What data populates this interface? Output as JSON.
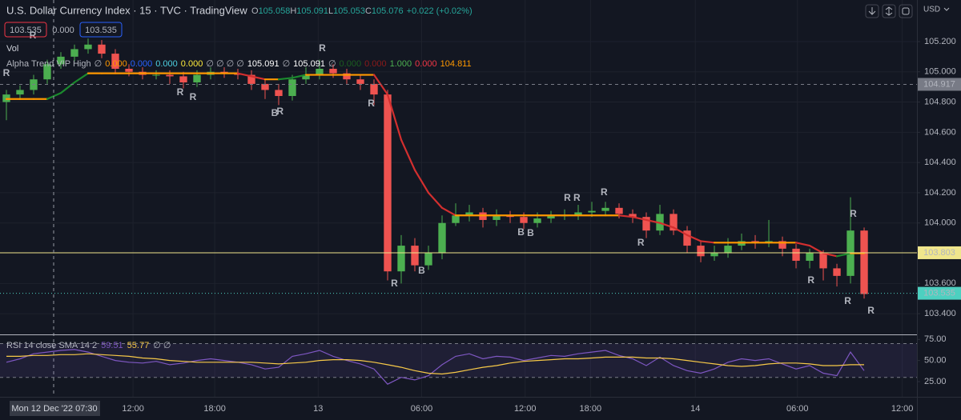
{
  "header": {
    "title": "U.S. Dollar Currency Index · 15 · TVC · TradingView",
    "ohlc": [
      "O",
      "105.058",
      "H",
      "105.091",
      "L",
      "105.053",
      "C",
      "105.076"
    ],
    "change": "+0.022 (+0.02%)",
    "tags": [
      {
        "text": "103.535",
        "color": "#f23645"
      },
      {
        "text": "0.000",
        "color": "#d1d4dc"
      },
      {
        "text": "103.535",
        "color": "#2962ff"
      }
    ],
    "vol": "Vol",
    "indicator": "Alpha Trend VIP High",
    "indicator_values": [
      {
        "text": "∅",
        "color": "#b2b5be"
      },
      {
        "text": "0.000",
        "color": "#ff9800"
      },
      {
        "text": "0.000",
        "color": "#2962ff"
      },
      {
        "text": "0.000",
        "color": "#4dd0e1"
      },
      {
        "text": "0.000",
        "color": "#ffeb3b"
      },
      {
        "text": "∅ ∅ ∅ ∅",
        "color": "#b2b5be"
      },
      {
        "text": "105.091",
        "color": "#ffffff"
      },
      {
        "text": "∅",
        "color": "#b2b5be"
      },
      {
        "text": "105.091",
        "color": "#ffffff"
      },
      {
        "text": "∅",
        "color": "#b2b5be"
      },
      {
        "text": "0.000",
        "color": "#1b5e20"
      },
      {
        "text": "0.000",
        "color": "#8b1a1a"
      },
      {
        "text": "1.000",
        "color": "#4caf50"
      },
      {
        "text": "0.000",
        "color": "#f23645"
      },
      {
        "text": "104.811",
        "color": "#ff9800"
      }
    ],
    "currency": "USD",
    "crosshair_label": "Mon 12 Dec '22  07:30"
  },
  "chart_data": [
    {
      "type": "candlestick",
      "up_color": "#4caf50",
      "down_color": "#ef5350",
      "open": [
        104.8,
        104.85,
        104.88,
        104.95,
        105.05,
        105.1,
        105.15,
        105.18,
        105.12,
        105.02,
        105.0,
        104.98,
        104.98,
        104.97,
        104.93,
        104.98,
        105.0,
        104.99,
        104.98,
        104.92,
        104.88,
        104.84,
        104.95,
        104.98,
        105.02,
        104.99,
        104.95,
        104.92,
        104.85,
        103.68,
        103.85,
        103.72,
        103.8,
        104.0,
        104.05,
        104.07,
        104.02,
        104.05,
        104.04,
        104.0,
        104.03,
        104.05,
        104.05,
        104.07,
        104.08,
        104.1,
        104.06,
        104.04,
        103.95,
        104.06,
        103.95,
        103.85,
        103.78,
        103.8,
        103.85,
        103.88,
        103.87,
        103.88,
        103.83,
        103.75,
        103.8,
        103.7,
        103.65,
        103.95
      ],
      "high": [
        104.88,
        104.91,
        104.98,
        105.08,
        105.13,
        105.18,
        105.22,
        105.21,
        105.15,
        105.05,
        105.03,
        105.01,
        105.01,
        105.0,
        105.01,
        105.03,
        105.03,
        105.02,
        105.01,
        104.95,
        104.92,
        104.98,
        105.03,
        105.08,
        105.05,
        105.02,
        104.98,
        104.95,
        104.88,
        103.92,
        103.9,
        103.85,
        104.05,
        104.13,
        104.12,
        104.1,
        104.09,
        104.08,
        104.07,
        104.07,
        104.08,
        104.09,
        104.12,
        104.14,
        104.14,
        104.13,
        104.09,
        104.07,
        104.12,
        104.09,
        103.98,
        103.88,
        103.85,
        103.9,
        103.93,
        103.92,
        104.02,
        103.91,
        103.86,
        103.83,
        103.82,
        103.73,
        104.17,
        103.97
      ],
      "low": [
        104.68,
        104.82,
        104.85,
        104.92,
        105.02,
        105.07,
        105.12,
        105.09,
        104.99,
        104.97,
        104.95,
        104.95,
        104.92,
        104.89,
        104.9,
        104.95,
        104.96,
        104.95,
        104.88,
        104.82,
        104.78,
        104.81,
        104.92,
        104.95,
        104.96,
        104.92,
        104.88,
        104.78,
        103.62,
        103.6,
        103.68,
        103.69,
        103.76,
        103.98,
        104.01,
        103.97,
        103.98,
        104.0,
        103.96,
        103.97,
        104.0,
        104.02,
        104.02,
        104.04,
        104.05,
        104.03,
        104.0,
        103.9,
        103.92,
        103.92,
        103.8,
        103.74,
        103.75,
        103.77,
        103.82,
        103.83,
        103.84,
        103.78,
        103.7,
        103.7,
        103.62,
        103.58,
        103.6,
        103.5
      ],
      "close": [
        104.85,
        104.88,
        104.95,
        105.05,
        105.1,
        105.15,
        105.18,
        105.12,
        105.02,
        105.0,
        104.98,
        104.98,
        104.97,
        104.93,
        104.98,
        105.0,
        104.99,
        104.98,
        104.92,
        104.88,
        104.84,
        104.95,
        104.98,
        105.02,
        104.99,
        104.95,
        104.92,
        104.85,
        103.68,
        103.85,
        103.72,
        103.8,
        104.0,
        104.05,
        104.07,
        104.02,
        104.05,
        104.04,
        104.0,
        104.03,
        104.05,
        104.05,
        104.07,
        104.08,
        104.1,
        104.06,
        104.04,
        103.95,
        104.06,
        103.95,
        103.85,
        103.78,
        103.8,
        103.85,
        103.88,
        103.87,
        103.88,
        103.83,
        103.75,
        103.8,
        103.7,
        103.65,
        103.95,
        103.53
      ],
      "trend": {
        "values": [
          104.82,
          104.82,
          104.82,
          104.82,
          104.86,
          104.93,
          104.99,
          104.99,
          104.99,
          104.99,
          104.99,
          104.99,
          104.99,
          104.99,
          104.99,
          104.99,
          104.99,
          104.99,
          104.97,
          104.95,
          104.95,
          104.96,
          104.98,
          104.98,
          104.98,
          104.98,
          104.98,
          104.98,
          104.85,
          104.55,
          104.35,
          104.2,
          104.1,
          104.05,
          104.05,
          104.05,
          104.05,
          104.05,
          104.05,
          104.05,
          104.05,
          104.05,
          104.05,
          104.05,
          104.05,
          104.05,
          104.04,
          104.02,
          104.0,
          103.97,
          103.92,
          103.88,
          103.87,
          103.87,
          103.87,
          103.87,
          103.87,
          103.87,
          103.87,
          103.85,
          103.8,
          103.78,
          103.8,
          103.8
        ],
        "up_color": "#1b8a2e",
        "flat_color": "#ff9800",
        "down_color": "#d32f2f"
      },
      "signals": [
        {
          "label": "R",
          "x": 0,
          "y": 104.988,
          "color": "#f7c948"
        },
        {
          "label": "R",
          "x": 1.94,
          "y": 105.237,
          "color": "#c0504d"
        },
        {
          "label": "R",
          "x": 12.76,
          "y": 104.861,
          "color": "#4dd0c0"
        },
        {
          "label": "R",
          "x": 13.7,
          "y": 104.83,
          "color": "#4dd0c0"
        },
        {
          "label": "B",
          "x": 19.7,
          "y": 104.724,
          "color": "#2979ff"
        },
        {
          "label": "R",
          "x": 20.1,
          "y": 104.734,
          "color": "#4dd0c0"
        },
        {
          "label": "R",
          "x": 23.2,
          "y": 105.152,
          "color": "#f7c948"
        },
        {
          "label": "R",
          "x": 26.8,
          "y": 104.787,
          "color": "#4dd0c0"
        },
        {
          "label": "R",
          "x": 28.5,
          "y": 103.597,
          "color": "#4dd0c0"
        },
        {
          "label": "B",
          "x": 30.5,
          "y": 103.681,
          "color": "#2979ff"
        },
        {
          "label": "B",
          "x": 37.8,
          "y": 103.935,
          "color": "#2979ff"
        },
        {
          "label": "B",
          "x": 38.5,
          "y": 103.93,
          "color": "#2979ff"
        },
        {
          "label": "R",
          "x": 41.2,
          "y": 104.163,
          "color": "#f7c948"
        },
        {
          "label": "R",
          "x": 41.9,
          "y": 104.163,
          "color": "#f7c948"
        },
        {
          "label": "R",
          "x": 43.9,
          "y": 104.2,
          "color": "#f7c948"
        },
        {
          "label": "R",
          "x": 46.6,
          "y": 103.867,
          "color": "#4dd0c0"
        },
        {
          "label": "R",
          "x": 59.1,
          "y": 103.618,
          "color": "#4dd0c0"
        },
        {
          "label": "R",
          "x": 61.8,
          "y": 103.48,
          "color": "#4dd0c0"
        },
        {
          "label": "R",
          "x": 62.2,
          "y": 104.057,
          "color": "#f7c948"
        },
        {
          "label": "R",
          "x": 63.5,
          "y": 103.417,
          "color": "#4dd0c0"
        }
      ],
      "levels": [
        {
          "value": 104.917,
          "color": "#787b86",
          "text_color": "#ffffff",
          "style": "dashed"
        },
        {
          "value": 103.803,
          "color": "#f0e68c",
          "text_color": "#131722",
          "style": "solid"
        },
        {
          "value": 103.535,
          "color": "#4dd0c0",
          "text_color": "#131722",
          "style": "dotted"
        }
      ],
      "xlim": [
        -0.47,
        66.88
      ],
      "xticks": [
        {
          "value": 9.3,
          "label": "12:00"
        },
        {
          "value": 15.3,
          "label": "18:00"
        },
        {
          "value": 22.9,
          "label": "13"
        },
        {
          "value": 30.5,
          "label": "06:00"
        },
        {
          "value": 38.1,
          "label": "12:00"
        },
        {
          "value": 42.9,
          "label": "18:00"
        },
        {
          "value": 50.6,
          "label": "14"
        },
        {
          "value": 58.1,
          "label": "06:00"
        },
        {
          "value": 65.8,
          "label": "12:00"
        }
      ],
      "ylim": [
        103.263,
        105.475
      ],
      "yticks": [
        {
          "value": 105.2,
          "label": "105.200"
        },
        {
          "value": 105.0,
          "label": "105.000"
        },
        {
          "value": 104.8,
          "label": "104.800"
        },
        {
          "value": 104.6,
          "label": "104.600"
        },
        {
          "value": 104.4,
          "label": "104.400"
        },
        {
          "value": 104.2,
          "label": "104.200"
        },
        {
          "value": 104.0,
          "label": "104.000"
        },
        {
          "value": 103.6,
          "label": "103.600"
        },
        {
          "value": 103.4,
          "label": "103.400"
        }
      ]
    },
    {
      "type": "rsi",
      "title": "RSI 14 close SMA 14 2",
      "legend_values": [
        {
          "text": "59.51",
          "color": "#7e57c2"
        },
        {
          "text": "55.77",
          "color": "#f7c948"
        },
        {
          "text": "∅ ∅",
          "color": "#b2b5be"
        }
      ],
      "series": [
        {
          "color": "#7e57c2",
          "values": [
            48,
            52,
            58,
            60,
            62,
            63,
            60,
            55,
            50,
            48,
            47,
            49,
            45,
            47,
            50,
            52,
            50,
            48,
            45,
            40,
            42,
            55,
            58,
            62,
            55,
            50,
            46,
            40,
            22,
            30,
            27,
            32,
            45,
            55,
            58,
            52,
            55,
            54,
            50,
            53,
            56,
            55,
            58,
            60,
            62,
            56,
            52,
            44,
            54,
            44,
            38,
            35,
            40,
            48,
            52,
            50,
            52,
            46,
            40,
            44,
            35,
            32,
            60,
            38
          ]
        },
        {
          "color": "#f7c948",
          "values": [
            55,
            55,
            56,
            56,
            57,
            57,
            58,
            57,
            56,
            55,
            53,
            52,
            50,
            49,
            48,
            48,
            48,
            48,
            48,
            47,
            46,
            47,
            48,
            50,
            51,
            51,
            50,
            48,
            45,
            42,
            38,
            35,
            34,
            36,
            39,
            42,
            44,
            47,
            49,
            50,
            51,
            52,
            52,
            53,
            54,
            54,
            54,
            53,
            53,
            52,
            50,
            48,
            46,
            44,
            43,
            44,
            46,
            47,
            47,
            46,
            44,
            44,
            45,
            45
          ]
        }
      ],
      "band": [
        30,
        70
      ],
      "ylim": [
        7,
        80
      ],
      "yticks": [
        {
          "value": 75,
          "label": "75.00"
        },
        {
          "value": 50,
          "label": "50.00"
        },
        {
          "value": 25,
          "label": "25.00"
        }
      ]
    }
  ]
}
